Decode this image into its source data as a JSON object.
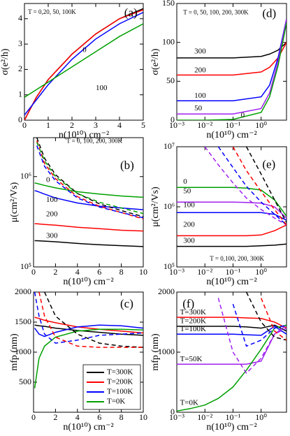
{
  "chart_data": [
    {
      "type": "line",
      "xlabel": "n(10¹⁰) cm⁻²",
      "ylabel": "σ(e²/h)",
      "x": [
        0,
        0.5,
        1,
        2,
        3,
        4,
        5
      ],
      "xlim": [
        0,
        5
      ],
      "xticks": [
        0,
        1,
        2,
        3,
        4,
        5
      ],
      "ylim": [
        0,
        4.6
      ],
      "yticks": [
        0,
        1,
        2,
        3,
        4
      ],
      "series": [
        {
          "color": "#000000",
          "values": [
            0,
            0.9,
            1.6,
            2.6,
            3.4,
            4.0,
            4.4
          ]
        },
        {
          "color": "#ff0000",
          "values": [
            0,
            0.9,
            1.6,
            2.6,
            3.4,
            4.0,
            4.35
          ]
        },
        {
          "color": "#0000ff",
          "values": [
            0.2,
            0.8,
            1.4,
            2.4,
            3.2,
            3.8,
            4.25
          ]
        },
        {
          "color": "#00a000",
          "values": [
            0.9,
            1.2,
            1.5,
            2.1,
            2.7,
            3.3,
            3.8
          ]
        }
      ],
      "annotations": [
        {
          "text": "T = 0,20, 50, 100K",
          "x": 0.15,
          "y": 4.25
        },
        {
          "text": "(a)",
          "x": 4.2,
          "y": 4.2
        },
        {
          "text": "0",
          "x": 2.45,
          "y": 2.75
        },
        {
          "text": "100",
          "x": 3.0,
          "y": 1.25
        }
      ]
    },
    {
      "type": "line",
      "xlabel": "n(10¹⁰) cm⁻²",
      "ylabel": "σ(e²/h)",
      "xlog": true,
      "x": [
        0.001,
        0.01,
        0.1,
        1,
        2,
        4,
        8
      ],
      "xlim": [
        0.001,
        8
      ],
      "xticks": [
        {
          "value": 0.001,
          "label": "10⁻³"
        },
        {
          "value": 0.01,
          "label": "10⁻²"
        },
        {
          "value": 0.1,
          "label": "10⁻¹"
        },
        {
          "value": 1,
          "label": "10⁰"
        }
      ],
      "ylim": [
        0,
        150
      ],
      "yticks": [
        0,
        50,
        100,
        150
      ],
      "series": [
        {
          "color": "#000000",
          "values": [
            80,
            80,
            80,
            82,
            85,
            90,
            100
          ]
        },
        {
          "color": "#ff0000",
          "values": [
            58,
            58,
            58,
            62,
            68,
            80,
            100
          ]
        },
        {
          "color": "#0000ff",
          "values": [
            25,
            25,
            25,
            30,
            45,
            80,
            130
          ]
        },
        {
          "color": "#a020f0",
          "values": [
            8,
            8,
            8,
            15,
            35,
            75,
            130
          ]
        },
        {
          "color": "#00a000",
          "values": [
            0,
            0,
            1,
            10,
            30,
            70,
            125
          ]
        }
      ],
      "annotations": [
        {
          "text": "T = 0, 50, 100, 200, 300K",
          "x": 0.0017,
          "y": 138
        },
        {
          "text": "(d)",
          "x": 1.1,
          "y": 136
        },
        {
          "text": "300",
          "x": 0.0042,
          "y": 88
        },
        {
          "text": "200",
          "x": 0.0042,
          "y": 64
        },
        {
          "text": "100",
          "x": 0.0042,
          "y": 31
        },
        {
          "text": "50",
          "x": 0.0042,
          "y": 15
        },
        {
          "text": "0",
          "x": 0.19,
          "y": 6
        }
      ]
    },
    {
      "type": "line",
      "xlabel": "n(10¹⁰) cm⁻²",
      "ylabel": "μ(cm²/Vs)",
      "ylog": true,
      "x": [
        0.1,
        0.3,
        1,
        2,
        4,
        6,
        8,
        10
      ],
      "xlim": [
        0,
        10
      ],
      "xticks": [
        0,
        2,
        4,
        6,
        8,
        10
      ],
      "ylim": [
        100000,
        2700000
      ],
      "yticks": [
        {
          "value": 100000,
          "label": "10⁵"
        },
        {
          "value": 1000000,
          "label": "10⁶"
        }
      ],
      "series": [
        {
          "color": "#00a000",
          "values": [
            850000,
            840000,
            800000,
            750000,
            680000,
            640000,
            610000,
            590000
          ]
        },
        {
          "color": "#0000ff",
          "values": [
            700000,
            690000,
            640000,
            580000,
            510000,
            470000,
            450000,
            430000
          ]
        },
        {
          "color": "#ff0000",
          "values": [
            300000,
            300000,
            295000,
            290000,
            275000,
            265000,
            255000,
            250000
          ]
        },
        {
          "color": "#000000",
          "values": [
            195000,
            195000,
            193000,
            190000,
            182000,
            176000,
            172000,
            168000
          ]
        },
        {
          "color": "#000000",
          "dashed": true,
          "values": [
            null,
            2700000,
            1600000,
            1050000,
            650000,
            500000,
            420000,
            360000
          ]
        },
        {
          "color": "#ff0000",
          "dashed": true,
          "values": [
            null,
            2500000,
            1400000,
            950000,
            600000,
            470000,
            400000,
            340000
          ]
        },
        {
          "color": "#0000ff",
          "dashed": true,
          "values": [
            null,
            2200000,
            1300000,
            900000,
            580000,
            460000,
            400000,
            350000
          ]
        },
        {
          "color": "#00a000",
          "dashed": true,
          "values": [
            null,
            2400000,
            1500000,
            1000000,
            650000,
            520000,
            450000,
            390000
          ]
        }
      ],
      "annotations": [
        {
          "text": "T = 0, 100, 200, 300K",
          "x": 3.0,
          "y": 2450000
        },
        {
          "text": "(b)",
          "x": 7.9,
          "y": 1300000
        },
        {
          "text": "0",
          "x": 1.15,
          "y": 910000
        },
        {
          "text": "100",
          "x": 1.15,
          "y": 550000
        },
        {
          "text": "200",
          "x": 1.15,
          "y": 380000
        },
        {
          "text": "300",
          "x": 1.15,
          "y": 220000
        }
      ]
    },
    {
      "type": "line",
      "xlabel": "n(10¹⁰) cm⁻²",
      "ylabel": "μ(cm²/Vs)",
      "xlog": true,
      "ylog": true,
      "x": [
        0.001,
        0.003,
        0.01,
        0.03,
        0.1,
        0.3,
        1,
        3,
        8
      ],
      "xlim": [
        0.001,
        8
      ],
      "xticks": [
        {
          "value": 0.001,
          "label": "10⁻³"
        },
        {
          "value": 0.01,
          "label": "10⁻²"
        },
        {
          "value": 0.1,
          "label": "10⁻¹"
        },
        {
          "value": 1,
          "label": "10⁰"
        }
      ],
      "ylim": [
        100000,
        10000000
      ],
      "yticks": [
        {
          "value": 100000,
          "label": "10⁵"
        },
        {
          "value": 1000000,
          "label": "10⁶"
        },
        {
          "value": 10000000,
          "label": "10⁷"
        }
      ],
      "series": [
        {
          "color": "#00a000",
          "values": [
            2100000,
            2100000,
            2100000,
            2100000,
            2100000,
            2050000,
            1900000,
            1300000,
            700000
          ]
        },
        {
          "color": "#a020f0",
          "values": [
            1200000,
            1200000,
            1200000,
            1200000,
            1200000,
            1180000,
            1150000,
            1000000,
            650000
          ]
        },
        {
          "color": "#0000ff",
          "values": [
            800000,
            800000,
            800000,
            800000,
            800000,
            800000,
            800000,
            750000,
            600000
          ]
        },
        {
          "color": "#ff0000",
          "values": [
            330000,
            330000,
            330000,
            330000,
            330000,
            330000,
            340000,
            400000,
            500000
          ]
        },
        {
          "color": "#000000",
          "values": [
            220000,
            220000,
            220000,
            220000,
            220000,
            220000,
            225000,
            230000,
            240000
          ]
        },
        {
          "color": "#a020f0",
          "dashed": true,
          "values": [
            null,
            null,
            10000000,
            5000000,
            2500000,
            1400000,
            900000,
            650000,
            500000
          ]
        },
        {
          "color": "#0000ff",
          "dashed": true,
          "values": [
            null,
            null,
            null,
            10000000,
            4500000,
            2200000,
            1200000,
            750000,
            500000
          ]
        },
        {
          "color": "#ff0000",
          "dashed": true,
          "values": [
            null,
            null,
            null,
            null,
            10000000,
            4000000,
            1800000,
            900000,
            500000
          ]
        },
        {
          "color": "#000000",
          "dashed": true,
          "values": [
            null,
            null,
            null,
            null,
            null,
            10000000,
            3500000,
            1300000,
            550000
          ]
        }
      ],
      "annotations": [
        {
          "text": "0",
          "x": 0.0017,
          "y": 2600000
        },
        {
          "text": "50",
          "x": 0.0017,
          "y": 1800000
        },
        {
          "text": "100",
          "x": 0.0017,
          "y": 1050000
        },
        {
          "text": "200",
          "x": 0.0017,
          "y": 500000
        },
        {
          "text": "300",
          "x": 0.0017,
          "y": 270000
        },
        {
          "text": "T = 0,100, 200, 300K",
          "x": 0.015,
          "y": 135000
        },
        {
          "text": "(e)",
          "x": 1.1,
          "y": 4900000
        }
      ]
    },
    {
      "type": "line",
      "xlabel": "n(10¹⁰) cm⁻²",
      "ylabel": "mfp (nm)",
      "legend": "lower right",
      "x": [
        0.1,
        0.5,
        1,
        2,
        4,
        6,
        8,
        10
      ],
      "xlim": [
        0,
        10
      ],
      "xticks": [
        0,
        2,
        4,
        6,
        8,
        10
      ],
      "ylim": [
        0,
        2000
      ],
      "yticks": [
        500,
        1000,
        1500,
        2000
      ],
      "series": [
        {
          "name": "T=300K",
          "color": "#000000",
          "values": [
            1450,
            1440,
            1430,
            1400,
            1360,
            1330,
            1300,
            1280
          ]
        },
        {
          "name": "T=200K",
          "color": "#ff0000",
          "values": [
            1580,
            1560,
            1530,
            1490,
            1420,
            1380,
            1350,
            1320
          ]
        },
        {
          "name": "T=100K",
          "color": "#0000ff",
          "values": [
            1400,
            1300,
            1260,
            1330,
            1420,
            1450,
            1440,
            1400
          ]
        },
        {
          "name": "T=0K",
          "color": "#00a000",
          "values": [
            400,
            900,
            1100,
            1250,
            1350,
            1380,
            1380,
            1370
          ]
        },
        {
          "color": "#000000",
          "dashed": true,
          "values": [
            null,
            null,
            2000,
            1600,
            1300,
            1150,
            1100,
            1080
          ]
        },
        {
          "color": "#ff0000",
          "dashed": true,
          "values": [
            null,
            2000,
            1600,
            1250,
            1100,
            1080,
            1080,
            1080
          ]
        },
        {
          "color": "#0000ff",
          "dashed": true,
          "values": [
            2000,
            1600,
            1300,
            1150,
            1200,
            1280,
            1300,
            1320
          ]
        }
      ],
      "annotations": [
        {
          "text": "(c)",
          "x": 7.9,
          "y": 1790
        }
      ]
    },
    {
      "type": "line",
      "xlabel": "n(10¹⁰) cm⁻²",
      "ylabel": "mfp (nm)",
      "xlog": true,
      "x": [
        0.001,
        0.003,
        0.01,
        0.03,
        0.1,
        0.3,
        1,
        3,
        8
      ],
      "xlim": [
        0.001,
        8
      ],
      "xticks": [
        {
          "value": 0.001,
          "label": "10⁻³"
        },
        {
          "value": 0.01,
          "label": "10⁻²"
        },
        {
          "value": 0.1,
          "label": "10⁻¹"
        },
        {
          "value": 1,
          "label": "10⁰"
        }
      ],
      "ylim": [
        0,
        2000
      ],
      "yticks": [
        0,
        1000,
        2000
      ],
      "series": [
        {
          "color": "#ff0000",
          "values": [
            1580,
            1580,
            1580,
            1580,
            1580,
            1570,
            1560,
            1500,
            1400
          ]
        },
        {
          "color": "#000000",
          "values": [
            1430,
            1430,
            1430,
            1430,
            1430,
            1420,
            1400,
            1450,
            1350
          ]
        },
        {
          "color": "#0000ff",
          "values": [
            1300,
            1300,
            1300,
            1300,
            1300,
            1290,
            1280,
            1430,
            1300
          ]
        },
        {
          "color": "#a020f0",
          "values": [
            800,
            800,
            800,
            800,
            800,
            800,
            850,
            1300,
            1450
          ]
        },
        {
          "color": "#00a000",
          "values": [
            20,
            60,
            120,
            230,
            420,
            700,
            1050,
            1400,
            1450
          ]
        },
        {
          "color": "#a020f0",
          "dashed": true,
          "values": [
            null,
            null,
            null,
            1900,
            1000,
            650,
            900,
            1300,
            1400
          ]
        },
        {
          "color": "#0000ff",
          "dashed": true,
          "values": [
            null,
            null,
            null,
            null,
            1800,
            1100,
            1200,
            1400,
            1450
          ]
        },
        {
          "color": "#000000",
          "dashed": true,
          "values": [
            null,
            null,
            null,
            null,
            null,
            2000,
            1500,
            1250,
            1200
          ]
        },
        {
          "color": "#ff0000",
          "dashed": true,
          "values": [
            null,
            null,
            null,
            null,
            null,
            null,
            1900,
            1350,
            1200
          ]
        }
      ],
      "annotations": [
        {
          "text": "(f)",
          "x": 0.0016,
          "y": 1790
        },
        {
          "text": "T=300K",
          "x": 0.0013,
          "y": 1660
        },
        {
          "text": "T=200K",
          "x": 0.0013,
          "y": 1510
        },
        {
          "text": "T=100K",
          "x": 0.0013,
          "y": 1380
        },
        {
          "text": "T=50K",
          "x": 0.0013,
          "y": 880
        },
        {
          "text": "T=0K",
          "x": 0.0013,
          "y": 150
        }
      ]
    }
  ]
}
